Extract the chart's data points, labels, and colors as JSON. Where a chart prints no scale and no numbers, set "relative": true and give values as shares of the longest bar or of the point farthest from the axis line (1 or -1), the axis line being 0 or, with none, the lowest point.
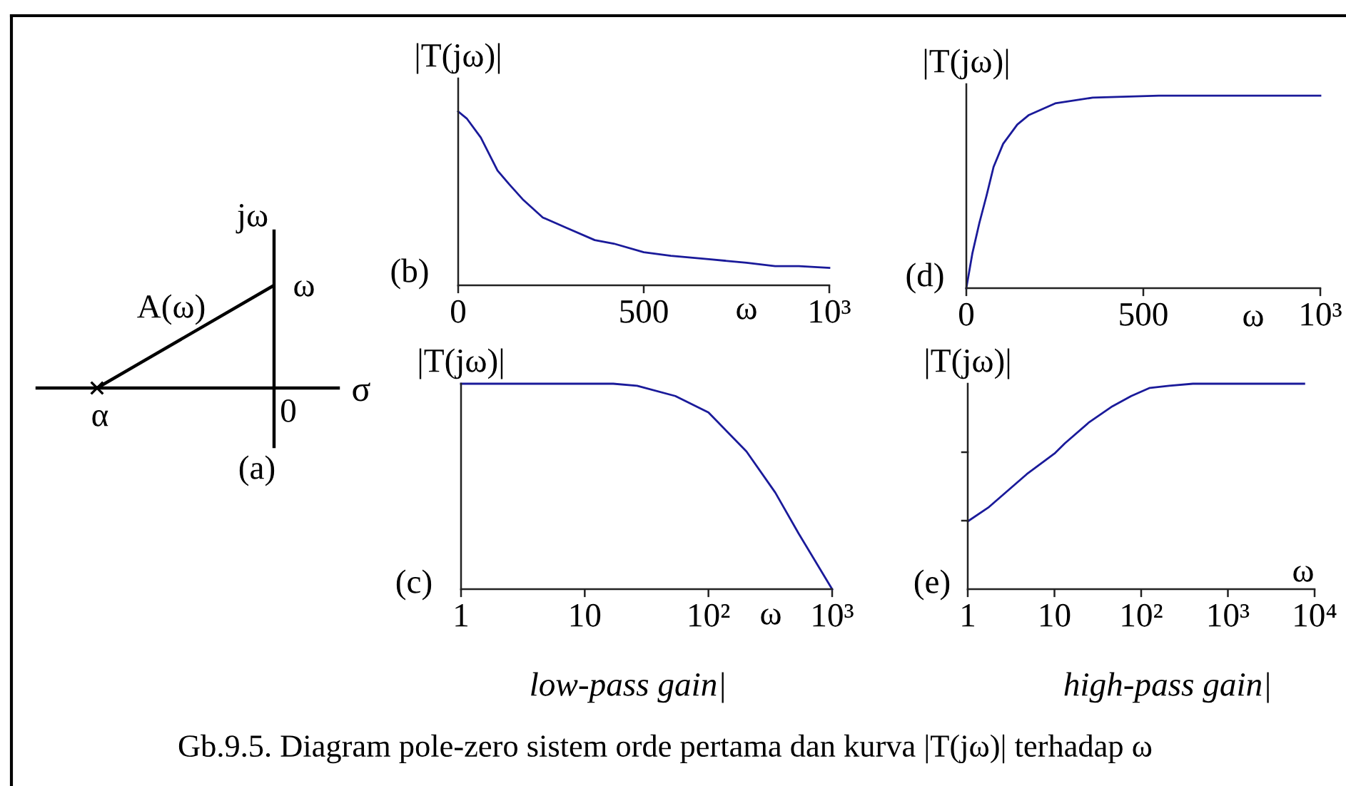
{
  "chart_data": [
    {
      "type": "other",
      "xlabel": "σ",
      "ylabel": "jω",
      "annotations": [
        "ω",
        "A(ω)",
        "α",
        "0",
        "(a)",
        "Gb.9.5. Diagram pole-zero sistem orde pertama dan kurva |T(jω)| terhadap ω"
      ]
    },
    {
      "type": "line",
      "relative": true,
      "xlabel": "ω",
      "ylabel": "|T(jω)|",
      "color": "#1a1a9a",
      "x": [
        0,
        23,
        61,
        106,
        138,
        176,
        228,
        292,
        368,
        419,
        500,
        573,
        675,
        777,
        854,
        918,
        1000
      ],
      "values": [
        1,
        0.96,
        0.85,
        0.66,
        0.58,
        0.49,
        0.39,
        0.33,
        0.26,
        0.24,
        0.19,
        0.17,
        0.15,
        0.13,
        0.11,
        0.11,
        0.1
      ],
      "xlim": [
        0,
        1000
      ],
      "xticks": [
        0,
        500,
        {
          "value": 1000,
          "label": "10³"
        }
      ],
      "annotations": [
        "(b)"
      ]
    },
    {
      "type": "line",
      "relative": true,
      "xlabel": "ω",
      "ylabel": "|T(jω)|",
      "color": "#1a1a9a",
      "x": [
        0,
        17,
        37,
        57,
        77,
        104,
        144,
        177,
        251,
        357,
        544,
        1000
      ],
      "values": [
        0,
        0.18,
        0.34,
        0.48,
        0.63,
        0.75,
        0.85,
        0.9,
        0.96,
        0.99,
        1,
        1
      ],
      "xlim": [
        0,
        1000
      ],
      "xticks": [
        0,
        500,
        {
          "value": 1000,
          "label": "10³"
        }
      ],
      "annotations": [
        "(d)"
      ]
    },
    {
      "type": "line",
      "relative": true,
      "log": "x",
      "xlabel": "ω",
      "ylabel": "|T(jω)|",
      "color": "#1a1a9a",
      "x": [
        1,
        17,
        26.5,
        54,
        100,
        203,
        347,
        537,
        1000
      ],
      "values": [
        1,
        1,
        0.99,
        0.94,
        0.86,
        0.67,
        0.47,
        0.27,
        0
      ],
      "xlim": [
        1,
        1000
      ],
      "xticks": [
        1,
        10,
        {
          "value": 100,
          "label": "10²"
        },
        {
          "value": 1000,
          "label": "10³"
        }
      ],
      "annotations": [
        "(c)",
        "low-pass gain|"
      ]
    },
    {
      "type": "line",
      "relative": true,
      "log": "x",
      "xlabel": "ω",
      "ylabel": "|T(jω)|",
      "color": "#1a1a9a",
      "x": [
        1,
        1.76,
        4.8,
        10,
        13.2,
        24.7,
        46.5,
        76.8,
        126,
        210,
        395,
        7580
      ],
      "values": [
        0.33,
        0.4,
        0.56,
        0.66,
        0.71,
        0.81,
        0.89,
        0.94,
        0.98,
        0.99,
        1,
        1
      ],
      "xlim": [
        1,
        10000
      ],
      "xticks": [
        1,
        10,
        {
          "value": 100,
          "label": "10²"
        },
        {
          "value": 1000,
          "label": "10³"
        },
        {
          "value": 10000,
          "label": "10⁴"
        }
      ],
      "annotations": [
        "(e)",
        "high-pass gain|"
      ]
    }
  ]
}
